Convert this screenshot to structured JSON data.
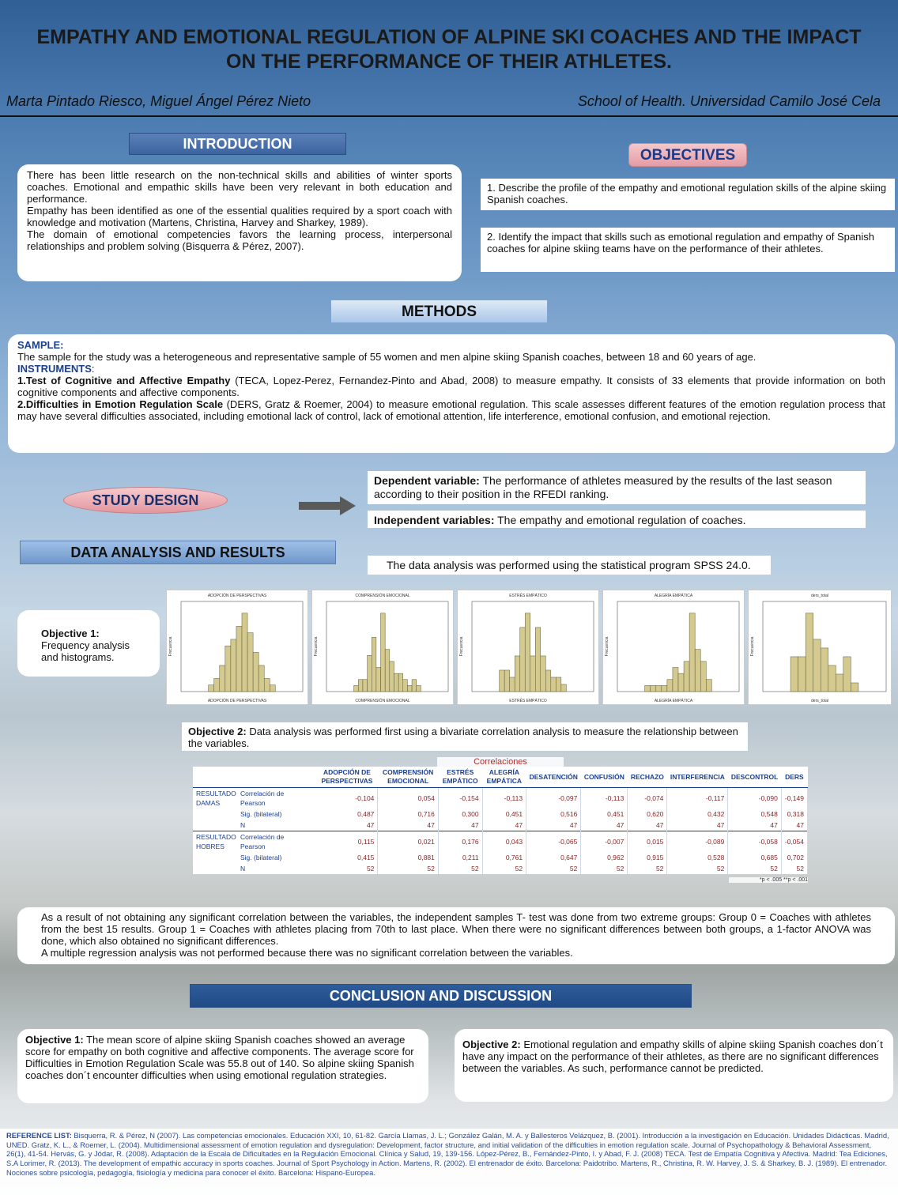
{
  "title": "EMPATHY AND EMOTIONAL REGULATION OF ALPINE SKI COACHES AND THE IMPACT ON THE PERFORMANCE OF THEIR ATHLETES.",
  "authors": "Marta Pintado Riesco, Miguel Ángel Pérez Nieto",
  "affiliation": "School of Health. Universidad Camilo José Cela",
  "introduction": {
    "heading": "INTRODUCTION",
    "p1": "There has been little research on the non-technical skills and abilities of winter sports coaches. Emotional and empathic skills have been very relevant in both education and performance.",
    "p2": "Empathy has been identified as one of the essential qualities required by a sport coach with knowledge and motivation (Martens, Christina, Harvey and Sharkey, 1989).",
    "p3": "The domain of emotional competencies favors the learning process, interpersonal relationships and problem solving (Bisquerra & Pérez, 2007)."
  },
  "objectives": {
    "heading": "OBJECTIVES",
    "o1": "1. Describe the profile of the empathy and emotional regulation skills of the alpine skiing Spanish coaches.",
    "o2": "2.  Identify the impact that skills such as emotional regulation and empathy of Spanish coaches for alpine skiing teams have on the performance of their athletes."
  },
  "methods": {
    "heading": "METHODS",
    "sample_label": "SAMPLE:",
    "sample_text": "The sample for the study was a heterogeneous and representative sample of 55 women and men alpine skiing Spanish coaches, between 18 and 60 years of age.",
    "instruments_label": "INSTRUMENTS",
    "instruments_colon": ":",
    "i1_bold": "1.Test of Cognitive and Affective Empathy",
    "i1_text": " (TECA, Lopez-Perez, Fernandez-Pinto and Abad, 2008) to measure empathy. It consists of 33 elements that provide information on both cognitive components and affective components.",
    "i2_bold": "2.Difficulties in Emotion Regulation Scale",
    "i2_text": " (DERS, Gratz & Roemer, 2004) to measure emotional regulation. This scale assesses different features of the emotion regulation process that may have several difficulties associated, including emotional lack of control, lack of emotional attention, life interference, emotional confusion, and emotional rejection."
  },
  "study_design": {
    "heading": "STUDY DESIGN",
    "dep_label": "Dependent variable:",
    "dep_text": " The performance of athletes measured by the results of the last season according to their position in the RFEDI ranking.",
    "ind_label": "Independent variables:",
    "ind_text": " The empathy and emotional regulation of coaches."
  },
  "results": {
    "heading": "DATA ANALYSIS AND RESULTS",
    "spss": "The data analysis was performed using the statistical program SPSS 24.0.",
    "obj1_label": "Objective 1:",
    "obj1_text": "Frequency analysis and histograms.",
    "obj2_label": "Objective 2:",
    "obj2_text": " Data analysis was performed first using a bivariate correlation analysis to measure the relationship between the variables.",
    "paragraph1": "As a result of not obtaining any significant correlation between the variables, the independent samples T- test was done from two extreme groups: Group 0 = Coaches with athletes from the best 15 results. Group 1 = Coaches with athletes placing from 70th to last place. When there were no significant differences between both groups, a 1-factor ANOVA was done, which also obtained no significant differences.",
    "paragraph2": "A multiple regression analysis was not performed because there was no significant correlation between the variables."
  },
  "chart_data": [
    {
      "type": "bar",
      "title": "ADOPCIÓN DE PERSPECTIVAS",
      "xlabel": "ADOPCIÓN DE PERSPECTIVAS",
      "ylabel": "Frecuencia",
      "values": [
        1,
        2,
        4,
        7,
        8,
        10,
        12,
        9,
        6,
        4,
        2,
        1
      ]
    },
    {
      "type": "bar",
      "title": "COMPRENSIÓN EMOCIONAL",
      "xlabel": "COMPRENSIÓN EMOCIONAL",
      "ylabel": "Frecuencia",
      "values": [
        1,
        2,
        2,
        6,
        9,
        4,
        13,
        7,
        5,
        3,
        3,
        2,
        1,
        2,
        1
      ]
    },
    {
      "type": "bar",
      "title": "ESTRÉS EMPÁTICO",
      "xlabel": "ESTRÉS EMPÁTICO",
      "ylabel": "Frecuencia",
      "values": [
        3,
        3,
        2,
        5,
        9,
        11,
        5,
        9,
        5,
        3,
        2,
        2,
        1
      ]
    },
    {
      "type": "bar",
      "title": "ALEGRÍA EMPÁTICA",
      "xlabel": "ALEGRÍA EMPÁTICA",
      "ylabel": "Frecuencia",
      "values": [
        1,
        1,
        1,
        1,
        2,
        4,
        3,
        5,
        13,
        7,
        5,
        2
      ]
    },
    {
      "type": "bar",
      "title": "ders_total",
      "xlabel": "ders_total",
      "ylabel": "Frecuencia",
      "values": [
        4,
        4,
        9,
        6,
        5,
        3,
        2,
        4,
        1
      ]
    }
  ],
  "correlations": {
    "caption": "Correlaciones",
    "headers": [
      "ADOPCIÓN DE PERSPECTIVAS",
      "COMPRENSIÓN EMOCIONAL",
      "ESTRÉS EMPÁTICO",
      "ALEGRÍA EMPÁTICA",
      "DESATENCIÓN",
      "CONFUSIÓN",
      "RECHAZO",
      "INTERFERENCIA",
      "DESCONTROL",
      "DERS"
    ],
    "groups": [
      {
        "name": "RESULTADO DAMAS",
        "rows": [
          {
            "label": "Correlación de Pearson",
            "values": [
              "-0,104",
              "0,054",
              "-0,154",
              "-0,113",
              "-0,097",
              "-0,113",
              "-0,074",
              "-0,117",
              "-0,090",
              "-0,149"
            ]
          },
          {
            "label": "Sig. (bilateral)",
            "values": [
              "0,487",
              "0,716",
              "0,300",
              "0,451",
              "0,516",
              "0,451",
              "0,620",
              "0,432",
              "0,548",
              "0,318"
            ]
          },
          {
            "label": "N",
            "values": [
              "47",
              "47",
              "47",
              "47",
              "47",
              "47",
              "47",
              "47",
              "47",
              "47"
            ]
          }
        ]
      },
      {
        "name": "RESULTADO HOBRES",
        "rows": [
          {
            "label": "Correlación de Pearson",
            "values": [
              "0,115",
              "0,021",
              "0,176",
              "0,043",
              "-0,065",
              "-0,007",
              "0,015",
              "-0,089",
              "-0,058",
              "-0,054"
            ]
          },
          {
            "label": "Sig. (bilateral)",
            "values": [
              "0,415",
              "0,881",
              "0,211",
              "0,761",
              "0,647",
              "0,962",
              "0,915",
              "0,528",
              "0,685",
              "0,702"
            ]
          },
          {
            "label": "N",
            "values": [
              "52",
              "52",
              "52",
              "52",
              "52",
              "52",
              "52",
              "52",
              "52",
              "52"
            ]
          }
        ]
      }
    ],
    "footnote": "*p < .005  **p < .001"
  },
  "conclusion": {
    "heading": "CONCLUSION AND DISCUSSION",
    "c1_label": "Objective 1:",
    "c1_text": " The mean score of alpine skiing Spanish coaches showed an average score for empathy on both cognitive and affective components. The average score for Difficulties in Emotion Regulation Scale was 55.8 out of 140. So alpine skiing Spanish coaches don´t encounter difficulties when using emotional regulation strategies.",
    "c2_label": "Objective 2:",
    "c2_text": " Emotional regulation and empathy skills of alpine skiing Spanish coaches don´t have any impact on the performance of their athletes, as there are no significant differences between the variables. As such, performance cannot be predicted."
  },
  "references": {
    "label": "REFERENCE LIST:",
    "text": " Bisquerra, R. & Pérez, N (2007). Las competencias emocionales. Educación XXI, 10, 61-82. García Llamas, J. L.; González Galán, M. A. y Ballesteros Velázquez, B. (2001). Introducción a la investigación en Educación. Unidades Didácticas. Madrid, UNED. Gratz, K. L., & Roemer, L. (2004). Multidimensional assessment of emotion regulation and dysregulation: Development, factor structure, and initial validation of the difficulties in emotion regulation scale. Journal of Psychopathology & Behavioral Assessment, 26(1), 41-54. Hervás, G. y Jódar, R. (2008). Adaptación de la Escala de Dificultades en la Regulación Emocional. Clínica y Salud, 19, 139-156. López-Pérez, B., Fernández-Pinto, I. y Abad, F. J. (2008) TECA. Test de Empatía Cognitiva y Afectiva. Madrid: Tea Ediciones, S.A Lorimer, R. (2013). The development of empathic accuracy in sports coaches. Journal of Sport Psychology in Action. Martens, R. (2002). El entrenador de éxito. Barcelona: Paidotribo. Martens, R., Christina, R. W. Harvey, J. S. & Sharkey, B. J. (1989). El entrenador. Nociones sobre psicología, pedagogía, fisiología y medicina para conocer el éxito. Barcelona: Hispano-Europea."
  }
}
